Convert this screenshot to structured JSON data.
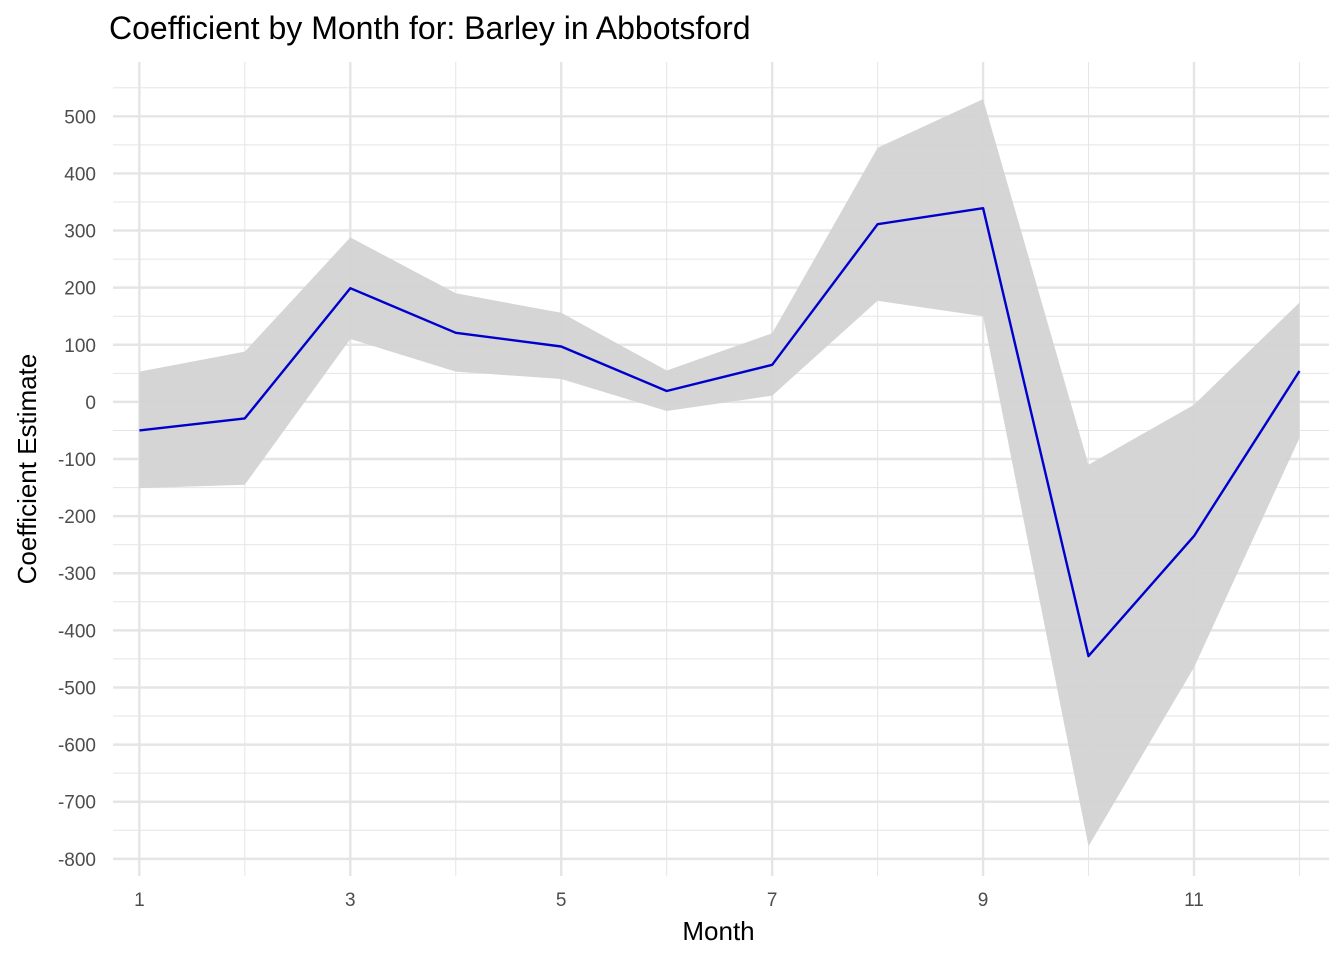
{
  "chart_data": {
    "type": "line",
    "title": "Coefficient by Month for: Barley in Abbotsford",
    "xlabel": "Month",
    "ylabel": "Coefficient Estimate",
    "xlim": [
      0.75,
      12.28
    ],
    "ylim": [
      -830,
      595
    ],
    "x_ticks": [
      1,
      3,
      5,
      7,
      9,
      11
    ],
    "y_ticks": [
      500,
      400,
      300,
      200,
      100,
      0,
      -100,
      -200,
      -300,
      -400,
      -500,
      -600,
      -700,
      -800
    ],
    "grid": true,
    "colors": {
      "line": "#0000CD",
      "ribbon": "#D3D3D3",
      "grid": "#E5E5E5"
    },
    "series": [
      {
        "x": [
          1,
          2,
          3,
          4,
          5,
          6,
          7,
          8,
          9,
          10,
          11,
          12
        ],
        "values": [
          -50,
          -29,
          199,
          121,
          97,
          19,
          65,
          311,
          339,
          -445,
          -235,
          54
        ],
        "lower": [
          -151,
          -145,
          110,
          53,
          40,
          -16,
          11,
          177,
          150,
          -778,
          -465,
          -63
        ],
        "upper": [
          53,
          88,
          288,
          190,
          156,
          55,
          120,
          445,
          530,
          -110,
          -5,
          174
        ]
      }
    ]
  }
}
